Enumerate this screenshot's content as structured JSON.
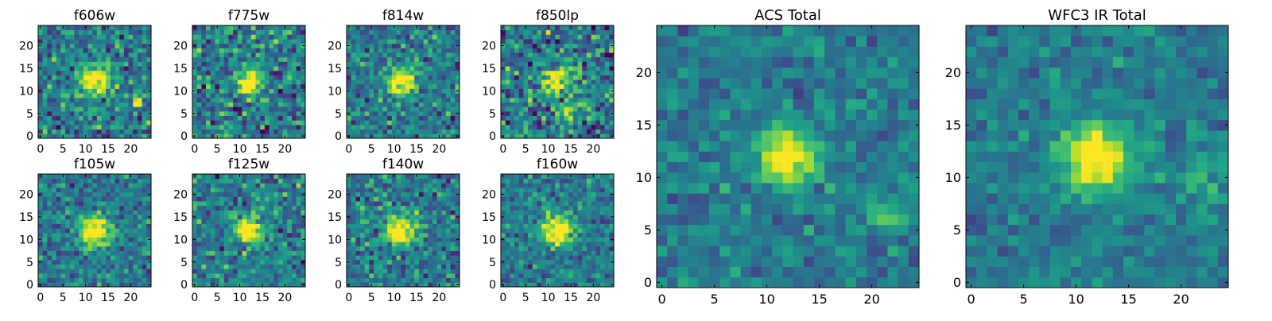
{
  "chart_data": [
    {
      "type": "heatmap",
      "title": "f606w",
      "xticks": [
        0,
        5,
        10,
        15,
        20
      ],
      "yticks": [
        0,
        5,
        10,
        15,
        20
      ],
      "xlim": [
        -0.5,
        24.5
      ],
      "ylim": [
        -0.5,
        24.5
      ],
      "grid": false,
      "colormap": "viridis",
      "source": {
        "center": [
          12,
          12
        ],
        "sigma": 2.2,
        "amplitude": 1.0
      },
      "secondary_source": {
        "center": [
          22,
          8
        ],
        "sigma": 1.2,
        "amplitude": 0.5
      },
      "noise": 0.28
    },
    {
      "type": "heatmap",
      "title": "f775w",
      "xticks": [
        0,
        5,
        10,
        15,
        20
      ],
      "yticks": [
        0,
        5,
        10,
        15,
        20
      ],
      "xlim": [
        -0.5,
        24.5
      ],
      "ylim": [
        -0.5,
        24.5
      ],
      "grid": false,
      "colormap": "viridis",
      "source": {
        "center": [
          12,
          12
        ],
        "sigma": 2.0,
        "amplitude": 0.95
      },
      "noise": 0.3
    },
    {
      "type": "heatmap",
      "title": "f814w",
      "xticks": [
        0,
        5,
        10,
        15,
        20
      ],
      "yticks": [
        0,
        5,
        10,
        15,
        20
      ],
      "xlim": [
        -0.5,
        24.5
      ],
      "ylim": [
        -0.5,
        24.5
      ],
      "grid": false,
      "colormap": "viridis",
      "source": {
        "center": [
          11.5,
          12
        ],
        "sigma": 2.1,
        "amplitude": 1.0
      },
      "noise": 0.25
    },
    {
      "type": "heatmap",
      "title": "f850lp",
      "xticks": [
        0,
        5,
        10,
        15,
        20
      ],
      "yticks": [
        0,
        5,
        10,
        15,
        20
      ],
      "xlim": [
        -0.5,
        24.5
      ],
      "ylim": [
        -0.5,
        24.5
      ],
      "grid": false,
      "colormap": "viridis",
      "source": {
        "center": [
          11.5,
          12
        ],
        "sigma": 2.0,
        "amplitude": 0.9
      },
      "secondary_source": {
        "center": [
          14,
          6
        ],
        "sigma": 1.5,
        "amplitude": 0.5
      },
      "noise": 0.33
    },
    {
      "type": "heatmap",
      "title": "f105w",
      "xticks": [
        0,
        5,
        10,
        15,
        20
      ],
      "yticks": [
        0,
        5,
        10,
        15,
        20
      ],
      "xlim": [
        -0.5,
        24.5
      ],
      "ylim": [
        -0.5,
        24.5
      ],
      "grid": false,
      "colormap": "viridis",
      "source": {
        "center": [
          12,
          12
        ],
        "sigma": 2.4,
        "amplitude": 1.0
      },
      "noise": 0.22
    },
    {
      "type": "heatmap",
      "title": "f125w",
      "xticks": [
        0,
        5,
        10,
        15,
        20
      ],
      "yticks": [
        0,
        5,
        10,
        15,
        20
      ],
      "xlim": [
        -0.5,
        24.5
      ],
      "ylim": [
        -0.5,
        24.5
      ],
      "grid": false,
      "colormap": "viridis",
      "source": {
        "center": [
          12,
          12
        ],
        "sigma": 2.4,
        "amplitude": 0.85
      },
      "noise": 0.26
    },
    {
      "type": "heatmap",
      "title": "f140w",
      "xticks": [
        0,
        5,
        10,
        15,
        20
      ],
      "yticks": [
        0,
        5,
        10,
        15,
        20
      ],
      "xlim": [
        -0.5,
        24.5
      ],
      "ylim": [
        -0.5,
        24.5
      ],
      "grid": false,
      "colormap": "viridis",
      "source": {
        "center": [
          11.5,
          12
        ],
        "sigma": 2.3,
        "amplitude": 0.95
      },
      "noise": 0.25
    },
    {
      "type": "heatmap",
      "title": "f160w",
      "xticks": [
        0,
        5,
        10,
        15,
        20
      ],
      "yticks": [
        0,
        5,
        10,
        15,
        20
      ],
      "xlim": [
        -0.5,
        24.5
      ],
      "ylim": [
        -0.5,
        24.5
      ],
      "grid": false,
      "colormap": "viridis",
      "source": {
        "center": [
          12,
          12
        ],
        "sigma": 2.4,
        "amplitude": 1.0
      },
      "noise": 0.22
    },
    {
      "type": "heatmap",
      "title": "ACS Total",
      "xticks": [
        0,
        5,
        10,
        15,
        20
      ],
      "yticks": [
        0,
        5,
        10,
        15,
        20
      ],
      "xlim": [
        -0.5,
        24.5
      ],
      "ylim": [
        -0.5,
        24.5
      ],
      "grid": false,
      "colormap": "viridis",
      "source": {
        "center": [
          11.8,
          12
        ],
        "sigma": 1.8,
        "amplitude": 1.0
      },
      "secondary_source": {
        "center": [
          21,
          7
        ],
        "sigma": 1.4,
        "amplitude": 0.28
      },
      "noise": 0.16
    },
    {
      "type": "heatmap",
      "title": "WFC3 IR Total",
      "xticks": [
        0,
        5,
        10,
        15,
        20
      ],
      "yticks": [
        0,
        5,
        10,
        15,
        20
      ],
      "xlim": [
        -0.5,
        24.5
      ],
      "ylim": [
        -0.5,
        24.5
      ],
      "grid": false,
      "colormap": "viridis",
      "source": {
        "center": [
          11.8,
          12
        ],
        "sigma": 2.2,
        "amplitude": 1.0
      },
      "secondary_source": {
        "center": [
          22,
          10
        ],
        "sigma": 1.6,
        "amplitude": 0.22
      },
      "noise": 0.14
    }
  ]
}
